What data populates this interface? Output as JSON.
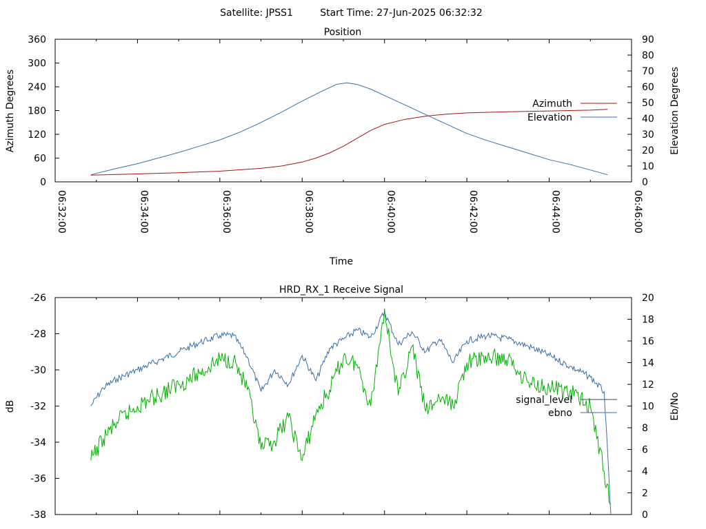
{
  "header": {
    "satellite": "Satellite: JPSS1",
    "start_time": "Start Time: 27-Jun-2025 06:32:32"
  },
  "chart_data": [
    {
      "type": "line",
      "title": "Position",
      "xlabel": "Time",
      "ylabel": "Azimuth Degrees",
      "y2label": "Elevation Degrees",
      "xlim": [
        "06:32:00",
        "06:46:00"
      ],
      "xticks": [
        "06:32:00",
        "06:34:00",
        "06:36:00",
        "06:38:00",
        "06:40:00",
        "06:42:00",
        "06:44:00",
        "06:46:00"
      ],
      "ylim": [
        0,
        360
      ],
      "yticks": [
        0,
        60,
        120,
        180,
        240,
        300,
        360
      ],
      "y2lim": [
        0,
        90
      ],
      "y2ticks": [
        0,
        10,
        20,
        30,
        40,
        50,
        60,
        70,
        80,
        90
      ],
      "grid": false,
      "legend": "right",
      "series": [
        {
          "name": "Azimuth",
          "axis": "y",
          "color": "#a31515",
          "x": [
            "06:32:52",
            "06:34:00",
            "06:35:00",
            "06:36:00",
            "06:37:00",
            "06:37:30",
            "06:38:00",
            "06:38:20",
            "06:38:40",
            "06:39:00",
            "06:39:20",
            "06:39:40",
            "06:40:00",
            "06:40:30",
            "06:41:00",
            "06:41:30",
            "06:42:00",
            "06:43:00",
            "06:44:00",
            "06:45:00",
            "06:45:25"
          ],
          "values": [
            17,
            20,
            23,
            27,
            34,
            40,
            50,
            60,
            73,
            90,
            110,
            130,
            145,
            158,
            166,
            171,
            174,
            177,
            179,
            181,
            183
          ]
        },
        {
          "name": "Elevation",
          "axis": "y2",
          "color": "#3a6ea5",
          "x": [
            "06:32:52",
            "06:33:30",
            "06:34:00",
            "06:34:30",
            "06:35:00",
            "06:35:30",
            "06:36:00",
            "06:36:30",
            "06:37:00",
            "06:37:30",
            "06:38:00",
            "06:38:30",
            "06:38:50",
            "06:39:05",
            "06:39:20",
            "06:39:40",
            "06:40:00",
            "06:40:30",
            "06:41:00",
            "06:41:30",
            "06:42:00",
            "06:42:30",
            "06:43:00",
            "06:43:30",
            "06:44:00",
            "06:44:30",
            "06:45:00",
            "06:45:25"
          ],
          "values": [
            4.5,
            8.5,
            11.5,
            15,
            18.5,
            22.5,
            26.5,
            31.5,
            37.5,
            44,
            51,
            57.5,
            61.5,
            62.5,
            61.5,
            58.5,
            54.5,
            48.5,
            42.5,
            36.5,
            30.5,
            26,
            22,
            18,
            14,
            11,
            7.5,
            4.5
          ]
        }
      ]
    },
    {
      "type": "line",
      "title": "HRD_RX_1 Receive Signal",
      "xlabel": "",
      "ylabel": "dB",
      "y2label": "Eb/No",
      "xlim": [
        "06:32:00",
        "06:46:00"
      ],
      "ylim": [
        -38,
        -26
      ],
      "yticks": [
        -38,
        -36,
        -34,
        -32,
        -30,
        -28,
        -26
      ],
      "y2lim": [
        0,
        20
      ],
      "y2ticks": [
        0,
        2,
        4,
        6,
        8,
        10,
        12,
        14,
        16,
        18,
        20
      ],
      "grid": false,
      "legend": "right",
      "series": [
        {
          "name": "signal_level",
          "axis": "y",
          "color": "#3a6ea5",
          "x": [
            "06:32:52",
            "06:33:10",
            "06:33:30",
            "06:34:00",
            "06:34:30",
            "06:35:00",
            "06:35:30",
            "06:36:00",
            "06:36:20",
            "06:36:40",
            "06:37:00",
            "06:37:20",
            "06:37:40",
            "06:38:00",
            "06:38:20",
            "06:38:40",
            "06:39:00",
            "06:39:20",
            "06:39:40",
            "06:40:00",
            "06:40:20",
            "06:40:40",
            "06:41:00",
            "06:41:20",
            "06:41:40",
            "06:42:00",
            "06:42:30",
            "06:43:00",
            "06:43:30",
            "06:44:00",
            "06:44:30",
            "06:45:00",
            "06:45:20",
            "06:45:30"
          ],
          "values": [
            -32,
            -31,
            -30.5,
            -30,
            -29.5,
            -29,
            -28.5,
            -28.1,
            -28.1,
            -29.3,
            -31.2,
            -30,
            -30.8,
            -29.2,
            -30.6,
            -28.8,
            -28.3,
            -27.8,
            -28.2,
            -26.8,
            -28.6,
            -27.9,
            -29,
            -28.3,
            -29.6,
            -28.4,
            -28.1,
            -28.3,
            -28.7,
            -29.2,
            -29.8,
            -30.4,
            -31.2,
            -38
          ]
        },
        {
          "name": "ebno",
          "axis": "y2",
          "color": "#00b000",
          "x": [
            "06:32:52",
            "06:33:10",
            "06:33:30",
            "06:34:00",
            "06:34:30",
            "06:35:00",
            "06:35:30",
            "06:36:00",
            "06:36:20",
            "06:36:40",
            "06:37:00",
            "06:37:20",
            "06:37:40",
            "06:38:00",
            "06:38:20",
            "06:38:40",
            "06:39:00",
            "06:39:20",
            "06:39:40",
            "06:40:00",
            "06:40:20",
            "06:40:40",
            "06:41:00",
            "06:41:20",
            "06:41:40",
            "06:42:00",
            "06:42:30",
            "06:43:00",
            "06:43:30",
            "06:44:00",
            "06:44:30",
            "06:45:00",
            "06:45:20",
            "06:45:30"
          ],
          "values": [
            5,
            7,
            8.5,
            10,
            11,
            12,
            13,
            14.3,
            14.3,
            11.5,
            6,
            6.8,
            9,
            5,
            9.3,
            11.5,
            14.5,
            13.8,
            10,
            19,
            11,
            15.5,
            9.5,
            10.8,
            10,
            14,
            14.5,
            14.3,
            12.2,
            11.7,
            11.3,
            10,
            4,
            1
          ]
        }
      ]
    }
  ]
}
